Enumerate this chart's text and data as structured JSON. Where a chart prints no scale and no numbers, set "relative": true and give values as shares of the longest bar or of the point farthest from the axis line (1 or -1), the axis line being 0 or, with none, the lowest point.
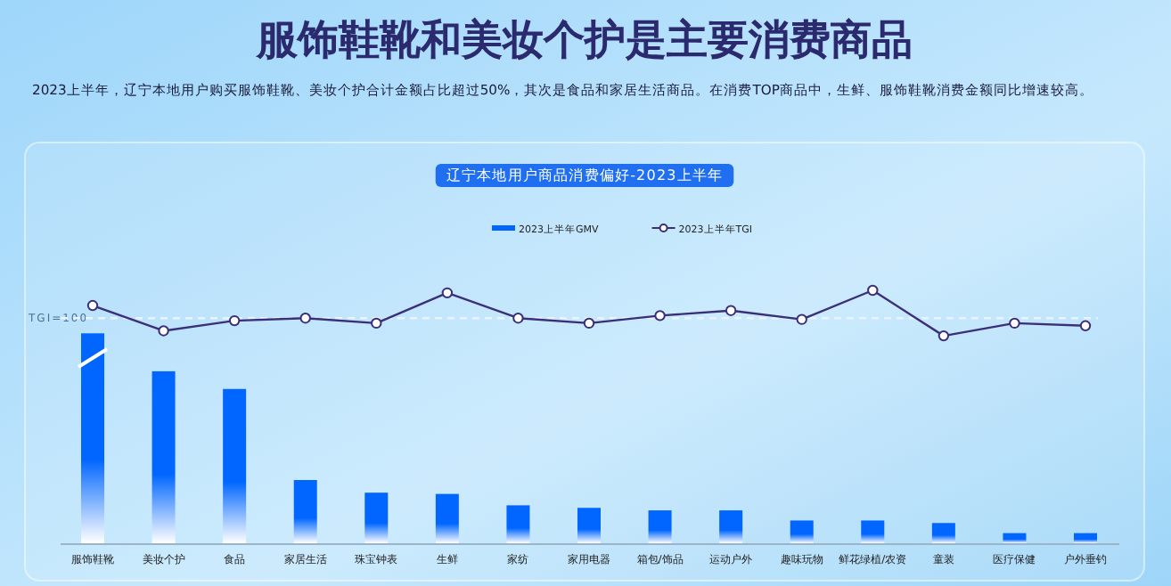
{
  "chart_data": {
    "type": "bar",
    "relative": true,
    "title": "服饰鞋靴和美妆个护是主要消费商品",
    "subtitle": "2023上半年，辽宁本地用户购买服饰鞋靴、美妆个护合计金额占比超过50%，其次是食品和家居生活商品。在消费TOP商品中，生鲜、服饰鞋靴消费金额同比增速较高。",
    "annotations": [
      "辽宁本地用户商品消费偏好-2023上半年",
      {
        "text": "TGI=100",
        "y": 0.89
      }
    ],
    "categories": [
      "服饰鞋靴",
      "美妆个护",
      "食品",
      "家居生活",
      "珠宝钟表",
      "生鲜",
      "家纺",
      "家用电器",
      "箱包/饰品",
      "运动户外",
      "趣味玩物",
      "鲜花绿植/农资",
      "童装",
      "医疗保健",
      "户外垂钓"
    ],
    "series": [
      {
        "name": "2023上半年GMV",
        "color": "#0066ff",
        "values": [
          0.83,
          0.68,
          0.61,
          0.25,
          0.2,
          0.195,
          0.15,
          0.14,
          0.13,
          0.13,
          0.09,
          0.09,
          0.08,
          0.04,
          0.04
        ]
      },
      {
        "name": "2023上半年TGI",
        "type": "line",
        "color": "#3b2f7a",
        "values": [
          0.94,
          0.84,
          0.88,
          0.89,
          0.87,
          0.99,
          0.89,
          0.87,
          0.9,
          0.92,
          0.885,
          1,
          0.82,
          0.87,
          0.86
        ]
      }
    ],
    "ref_lines": [
      {
        "axis": "y",
        "value": 0.89,
        "color": "#e8f4ff",
        "line_style": "dashed"
      }
    ],
    "legend": "top",
    "marker": "circle",
    "grid": false
  }
}
